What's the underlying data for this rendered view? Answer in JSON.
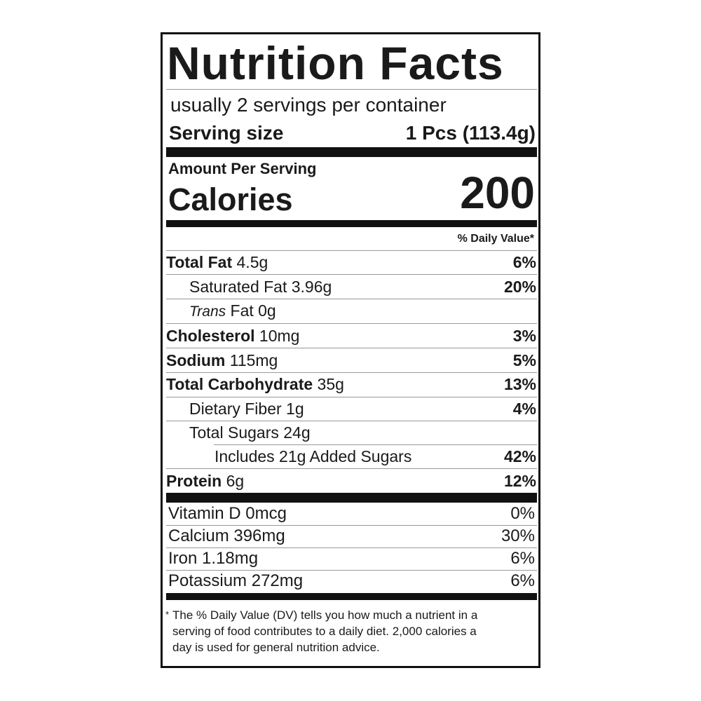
{
  "header": {
    "title": "Nutrition Facts",
    "servings": "usually 2 servings per container",
    "serving_size_label": "Serving size",
    "serving_size_value": "1 Pcs (113.4g)"
  },
  "calories": {
    "heading": "Amount Per Serving",
    "label": "Calories",
    "value": "200"
  },
  "daily_value_heading": "% Daily Value*",
  "nutrients": [
    {
      "name": "Total Fat",
      "amount": "4.5g",
      "dv": "6%"
    },
    {
      "name": "Saturated Fat",
      "amount": "3.96g",
      "dv": "20%"
    },
    {
      "name_italic": "Trans",
      "name": "Fat",
      "amount": "0g"
    },
    {
      "name": "Cholesterol",
      "amount": "10mg",
      "dv": "3%"
    },
    {
      "name": "Sodium",
      "amount": "115mg",
      "dv": "5%"
    },
    {
      "name": "Total Carbohydrate",
      "amount": "35g",
      "dv": "13%"
    },
    {
      "name": "Dietary Fiber",
      "amount": "1g",
      "dv": "4%"
    },
    {
      "name": "Total Sugars",
      "amount": "24g"
    },
    {
      "text": "Includes 21g Added Sugars",
      "dv": "42%"
    },
    {
      "name": "Protein",
      "amount": "6g",
      "dv": "12%"
    }
  ],
  "vitamins": [
    {
      "name": "Vitamin D",
      "amount": "0mcg",
      "dv": "0%"
    },
    {
      "name": "Calcium",
      "amount": "396mg",
      "dv": "30%"
    },
    {
      "name": "Iron",
      "amount": "1.18mg",
      "dv": "6%"
    },
    {
      "name": "Potassium",
      "amount": "272mg",
      "dv": "6%"
    }
  ],
  "footnote": {
    "marker": "*",
    "lines": [
      "The % Daily Value (DV) tells you how much a nutrient in a",
      "serving of food contributes to a daily diet. 2,000 calories a",
      "day is used for general nutrition advice."
    ]
  }
}
